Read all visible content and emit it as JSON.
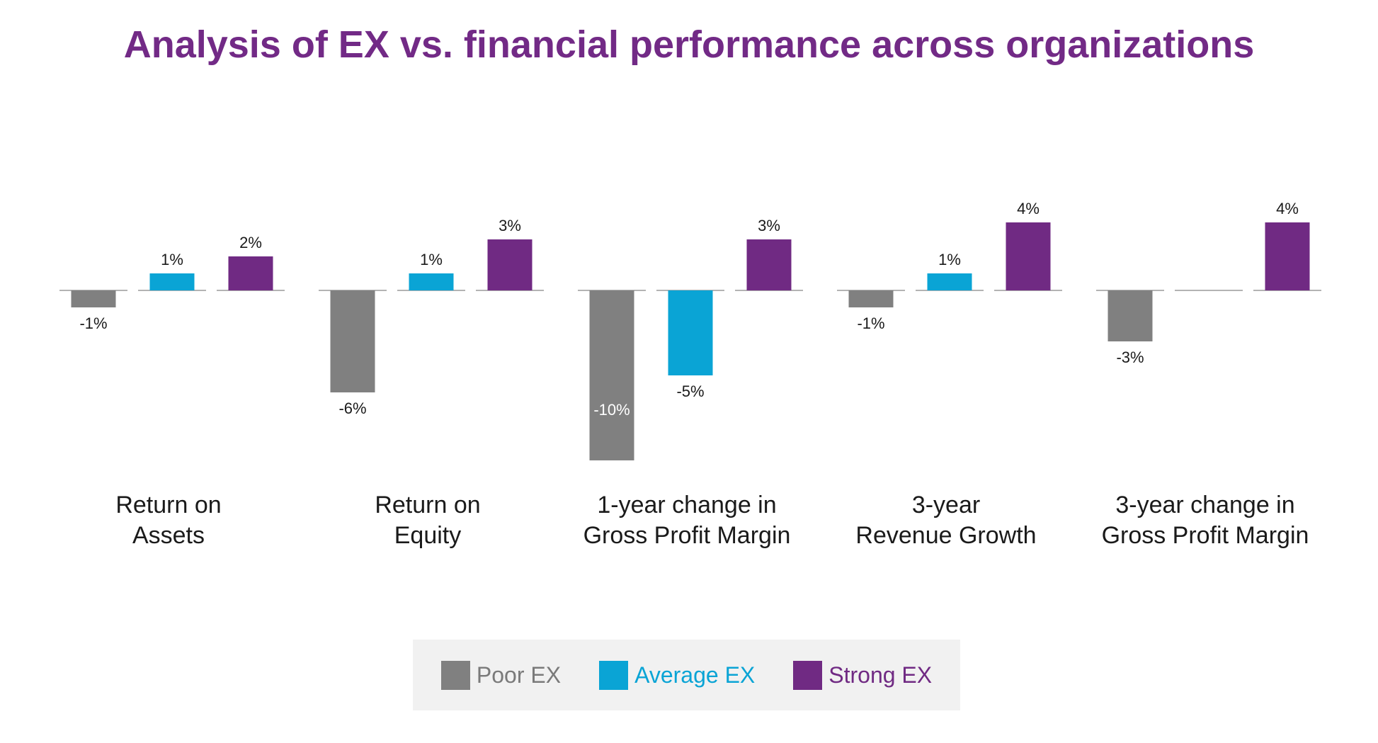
{
  "colors": {
    "title": "#722a86",
    "poor": "#808080",
    "average": "#0aa4d5",
    "strong": "#702a83",
    "baseline": "#9a9a9a"
  },
  "chart_data": {
    "type": "bar",
    "title": "Analysis of EX vs. financial performance across organizations",
    "categories": [
      [
        "Return on",
        "Assets"
      ],
      [
        "Return on",
        "Equity"
      ],
      [
        "1-year change in",
        "Gross Profit Margin"
      ],
      [
        "3-year",
        "Revenue Growth"
      ],
      [
        "3-year change in",
        "Gross Profit Margin"
      ]
    ],
    "series": [
      {
        "name": "Poor EX",
        "values": [
          -1,
          -6,
          -10,
          -1,
          -3
        ],
        "labels": [
          "-1%",
          "-6%",
          "-10%",
          "-1%",
          "-3%"
        ]
      },
      {
        "name": "Average EX",
        "values": [
          1,
          1,
          -5,
          1,
          0
        ],
        "labels": [
          "1%",
          "1%",
          "-5%",
          "1%",
          ""
        ]
      },
      {
        "name": "Strong EX",
        "values": [
          2,
          3,
          3,
          4,
          4
        ],
        "labels": [
          "2%",
          "3%",
          "3%",
          "4%",
          "4%"
        ]
      }
    ],
    "unit": "%",
    "legend": {
      "position": "bottom"
    },
    "grid": false
  }
}
